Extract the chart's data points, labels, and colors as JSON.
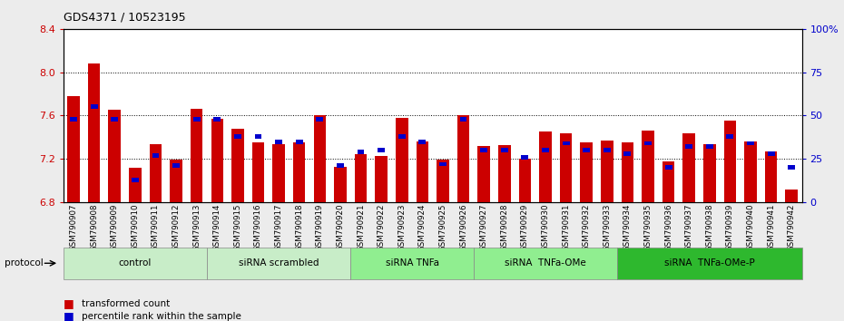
{
  "title": "GDS4371 / 10523195",
  "samples": [
    "GSM790907",
    "GSM790908",
    "GSM790909",
    "GSM790910",
    "GSM790911",
    "GSM790912",
    "GSM790913",
    "GSM790914",
    "GSM790915",
    "GSM790916",
    "GSM790917",
    "GSM790918",
    "GSM790919",
    "GSM790920",
    "GSM790921",
    "GSM790922",
    "GSM790923",
    "GSM790924",
    "GSM790925",
    "GSM790926",
    "GSM790927",
    "GSM790928",
    "GSM790929",
    "GSM790930",
    "GSM790931",
    "GSM790932",
    "GSM790933",
    "GSM790934",
    "GSM790935",
    "GSM790936",
    "GSM790937",
    "GSM790938",
    "GSM790939",
    "GSM790940",
    "GSM790941",
    "GSM790942"
  ],
  "red_values": [
    7.78,
    8.08,
    7.65,
    7.12,
    7.34,
    7.19,
    7.66,
    7.57,
    7.48,
    7.35,
    7.34,
    7.35,
    7.6,
    7.13,
    7.24,
    7.23,
    7.58,
    7.36,
    7.19,
    7.6,
    7.32,
    7.33,
    7.2,
    7.45,
    7.44,
    7.35,
    7.37,
    7.35,
    7.46,
    7.18,
    7.44,
    7.34,
    7.55,
    7.36,
    7.27,
    6.92
  ],
  "blue_values": [
    48,
    55,
    48,
    13,
    27,
    21,
    48,
    48,
    38,
    38,
    35,
    35,
    48,
    21,
    29,
    30,
    38,
    35,
    22,
    48,
    30,
    30,
    26,
    30,
    34,
    30,
    30,
    28,
    34,
    20,
    32,
    32,
    38,
    34,
    28,
    20
  ],
  "groups": [
    {
      "label": "control",
      "start": 0,
      "end": 6,
      "color": "#c8edc8"
    },
    {
      "label": "siRNA scrambled",
      "start": 7,
      "end": 13,
      "color": "#c8edc8"
    },
    {
      "label": "siRNA TNFa",
      "start": 14,
      "end": 19,
      "color": "#90ee90"
    },
    {
      "label": "siRNA  TNFa-OMe",
      "start": 20,
      "end": 26,
      "color": "#90ee90"
    },
    {
      "label": "siRNA  TNFa-OMe-P",
      "start": 27,
      "end": 35,
      "color": "#2eb82e"
    }
  ],
  "ylim_left": [
    6.8,
    8.4
  ],
  "ylim_right": [
    0,
    100
  ],
  "yticks_left": [
    6.8,
    7.2,
    7.6,
    8.0,
    8.4
  ],
  "yticks_right": [
    0,
    25,
    50,
    75,
    100
  ],
  "ytick_labels_right": [
    "0",
    "25",
    "50",
    "75",
    "100%"
  ],
  "grid_lines": [
    8.0,
    7.6,
    7.2
  ],
  "bar_color": "#cc0000",
  "blue_color": "#0000cc",
  "bg_color": "#ececec",
  "plot_bg": "#ffffff",
  "legend_red_label": "transformed count",
  "legend_blue_label": "percentile rank within the sample"
}
